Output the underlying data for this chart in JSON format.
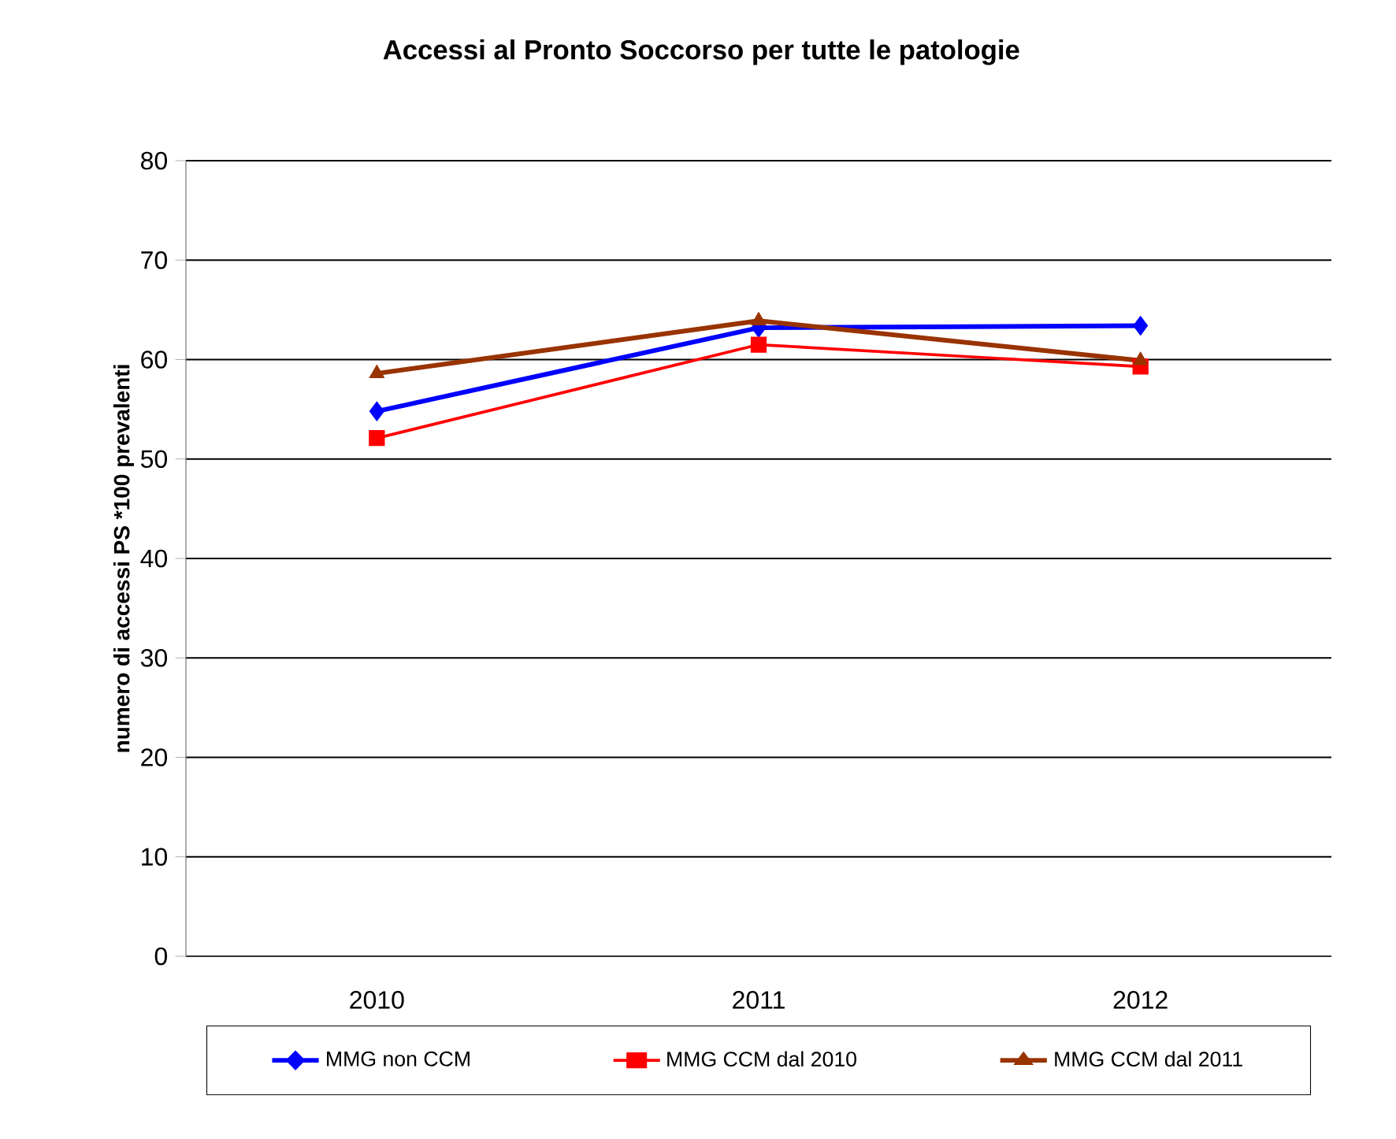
{
  "chart_data": {
    "type": "line",
    "title": "Accessi al Pronto Soccorso per tutte le patologie",
    "ylabel": "numero di accessi PS *100 prevalenti",
    "categories": [
      "2010",
      "2011",
      "2012"
    ],
    "series": [
      {
        "name": "MMG non CCM",
        "color": "#0000ff",
        "marker": "diamond",
        "values": [
          54.8,
          63.2,
          63.4
        ]
      },
      {
        "name": "MMG CCM dal 2010",
        "color": "#ff0000",
        "marker": "square",
        "values": [
          52.1,
          61.5,
          59.3
        ]
      },
      {
        "name": "MMG CCM dal 2011",
        "color": "#993300",
        "marker": "triangle",
        "values": [
          58.6,
          63.9,
          59.9
        ]
      }
    ],
    "ylim": [
      0,
      80
    ],
    "yticks": [
      0,
      10,
      20,
      30,
      40,
      50,
      60,
      70,
      80
    ],
    "grid": "y",
    "legend": "bottom"
  }
}
